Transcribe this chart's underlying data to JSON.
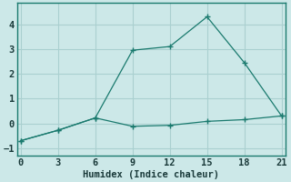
{
  "xlabel": "Humidex (Indice chaleur)",
  "background_color": "#cce8e8",
  "grid_color": "#aad0d0",
  "line_color": "#1a7a6e",
  "x_line1": [
    0,
    3,
    6,
    9,
    12,
    15,
    18,
    21
  ],
  "y_line1": [
    -0.7,
    -0.28,
    0.22,
    2.95,
    3.1,
    4.3,
    2.45,
    0.3
  ],
  "x_line2": [
    0,
    3,
    6,
    9,
    12,
    15,
    18,
    21
  ],
  "y_line2": [
    -0.7,
    -0.28,
    0.22,
    -0.12,
    -0.08,
    0.08,
    0.15,
    0.3
  ],
  "xlim": [
    -0.3,
    21.3
  ],
  "ylim": [
    -1.3,
    4.85
  ],
  "xticks": [
    0,
    3,
    6,
    9,
    12,
    15,
    18,
    21
  ],
  "yticks": [
    -1,
    0,
    1,
    2,
    3,
    4
  ],
  "label_fontsize": 7.5,
  "tick_fontsize": 7.5
}
